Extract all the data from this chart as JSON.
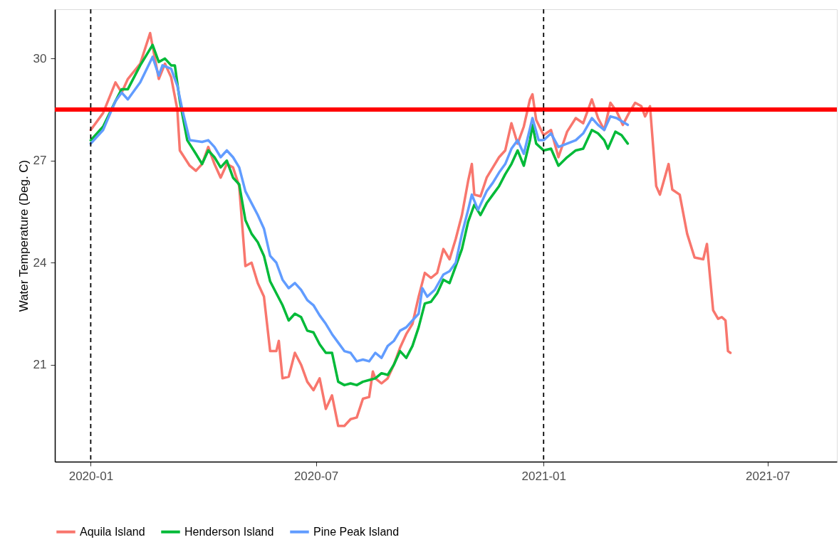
{
  "chart_data": {
    "type": "line",
    "ylabel": "Water Temperature (Deg. C)",
    "xlim": [
      "2019-12-03",
      "2021-08-26"
    ],
    "xticks": [
      "2020-01",
      "2020-07",
      "2021-01",
      "2021-07"
    ],
    "ylim": [
      18.15,
      31.45
    ],
    "yticks": [
      21,
      24,
      27,
      30
    ],
    "grid": false,
    "legend": "bottom",
    "marker": "none",
    "line_style": "solid",
    "ref_lines": [
      {
        "axis": "y",
        "value": 28.5,
        "color": "#ff0000",
        "line_style": "solid"
      },
      {
        "axis": "x",
        "value": "2020-01-01",
        "color": "#000000",
        "line_style": "dashed"
      },
      {
        "axis": "x",
        "value": "2021-01-01",
        "color": "#000000",
        "line_style": "dashed"
      }
    ],
    "series": [
      {
        "name": "Aquila Island",
        "color": "#f8766d",
        "x": [
          "2020-01-01",
          "2020-01-11",
          "2020-01-21",
          "2020-01-26",
          "2020-01-31",
          "2020-02-10",
          "2020-02-18",
          "2020-02-25",
          "2020-03-01",
          "2020-03-06",
          "2020-03-11",
          "2020-03-13",
          "2020-03-21",
          "2020-03-26",
          "2020-03-31",
          "2020-04-05",
          "2020-04-10",
          "2020-04-15",
          "2020-04-20",
          "2020-04-25",
          "2020-04-30",
          "2020-05-05",
          "2020-05-10",
          "2020-05-15",
          "2020-05-20",
          "2020-05-25",
          "2020-05-30",
          "2020-06-01",
          "2020-06-04",
          "2020-06-09",
          "2020-06-14",
          "2020-06-19",
          "2020-06-24",
          "2020-06-29",
          "2020-07-04",
          "2020-07-09",
          "2020-07-14",
          "2020-07-19",
          "2020-07-24",
          "2020-07-29",
          "2020-08-03",
          "2020-08-08",
          "2020-08-13",
          "2020-08-16",
          "2020-08-18",
          "2020-08-23",
          "2020-08-28",
          "2020-09-02",
          "2020-09-07",
          "2020-09-12",
          "2020-09-17",
          "2020-09-22",
          "2020-09-27",
          "2020-10-02",
          "2020-10-07",
          "2020-10-12",
          "2020-10-17",
          "2020-10-22",
          "2020-10-27",
          "2020-11-01",
          "2020-11-04",
          "2020-11-06",
          "2020-11-11",
          "2020-11-16",
          "2020-11-21",
          "2020-11-26",
          "2020-12-01",
          "2020-12-06",
          "2020-12-11",
          "2020-12-16",
          "2020-12-21",
          "2020-12-23",
          "2020-12-26",
          "2021-01-01",
          "2021-01-07",
          "2021-01-13",
          "2021-01-20",
          "2021-01-27",
          "2021-02-02",
          "2021-02-09",
          "2021-02-14",
          "2021-02-19",
          "2021-02-24",
          "2021-03-01",
          "2021-03-06",
          "2021-03-11",
          "2021-03-16",
          "2021-03-21",
          "2021-03-24",
          "2021-03-28",
          "2021-04-02",
          "2021-04-05",
          "2021-04-12",
          "2021-04-15",
          "2021-04-21",
          "2021-04-27",
          "2021-05-03",
          "2021-05-10",
          "2021-05-13",
          "2021-05-18",
          "2021-05-22",
          "2021-05-25",
          "2021-05-28",
          "2021-05-30",
          "2021-06-01"
        ],
        "values": [
          27.9,
          28.4,
          29.3,
          29.0,
          29.4,
          29.85,
          30.75,
          29.4,
          29.85,
          29.45,
          28.5,
          27.3,
          26.85,
          26.7,
          26.9,
          27.4,
          26.9,
          26.5,
          26.9,
          26.8,
          26.25,
          23.9,
          24.0,
          23.4,
          23.0,
          21.4,
          21.4,
          21.7,
          20.6,
          20.65,
          21.35,
          21.0,
          20.5,
          20.25,
          20.6,
          19.7,
          20.1,
          19.2,
          19.2,
          19.4,
          19.45,
          20.0,
          20.05,
          20.8,
          20.6,
          20.45,
          20.6,
          21.0,
          21.5,
          21.9,
          22.2,
          23.0,
          23.7,
          23.55,
          23.7,
          24.4,
          24.1,
          24.7,
          25.4,
          26.4,
          26.9,
          26.0,
          25.95,
          26.5,
          26.8,
          27.1,
          27.3,
          28.1,
          27.5,
          28.0,
          28.8,
          28.95,
          28.2,
          27.75,
          27.9,
          27.1,
          27.85,
          28.25,
          28.1,
          28.8,
          28.25,
          27.9,
          28.7,
          28.45,
          28.05,
          28.4,
          28.7,
          28.6,
          28.3,
          28.6,
          26.25,
          26.0,
          26.9,
          26.15,
          26.0,
          24.85,
          24.15,
          24.1,
          24.55,
          22.6,
          22.35,
          22.4,
          22.3,
          21.4,
          21.35
        ]
      },
      {
        "name": "Henderson Island",
        "color": "#00ba38",
        "x": [
          "2020-01-01",
          "2020-01-11",
          "2020-01-21",
          "2020-01-26",
          "2020-01-31",
          "2020-02-10",
          "2020-02-20",
          "2020-02-25",
          "2020-03-01",
          "2020-03-06",
          "2020-03-09",
          "2020-03-13",
          "2020-03-19",
          "2020-03-26",
          "2020-03-31",
          "2020-04-05",
          "2020-04-10",
          "2020-04-15",
          "2020-04-20",
          "2020-04-25",
          "2020-04-30",
          "2020-05-05",
          "2020-05-10",
          "2020-05-15",
          "2020-05-20",
          "2020-05-25",
          "2020-05-30",
          "2020-06-04",
          "2020-06-09",
          "2020-06-14",
          "2020-06-19",
          "2020-06-24",
          "2020-06-29",
          "2020-07-04",
          "2020-07-09",
          "2020-07-14",
          "2020-07-19",
          "2020-07-24",
          "2020-07-29",
          "2020-08-03",
          "2020-08-08",
          "2020-08-13",
          "2020-08-18",
          "2020-08-23",
          "2020-08-28",
          "2020-09-02",
          "2020-09-07",
          "2020-09-12",
          "2020-09-17",
          "2020-09-22",
          "2020-09-27",
          "2020-10-02",
          "2020-10-07",
          "2020-10-12",
          "2020-10-17",
          "2020-10-22",
          "2020-10-27",
          "2020-11-01",
          "2020-11-06",
          "2020-11-11",
          "2020-11-16",
          "2020-11-21",
          "2020-11-26",
          "2020-12-01",
          "2020-12-06",
          "2020-12-11",
          "2020-12-16",
          "2020-12-21",
          "2020-12-23",
          "2020-12-26",
          "2021-01-01",
          "2021-01-07",
          "2021-01-13",
          "2021-01-20",
          "2021-01-27",
          "2021-02-02",
          "2021-02-09",
          "2021-02-14",
          "2021-02-19",
          "2021-02-22",
          "2021-02-28",
          "2021-03-05",
          "2021-03-10"
        ],
        "values": [
          27.6,
          28.0,
          28.75,
          29.1,
          29.1,
          29.8,
          30.4,
          29.9,
          30.0,
          29.8,
          29.8,
          28.75,
          27.6,
          27.2,
          26.9,
          27.3,
          27.1,
          26.8,
          27.0,
          26.5,
          26.3,
          25.25,
          24.85,
          24.6,
          24.2,
          23.45,
          23.1,
          22.75,
          22.3,
          22.5,
          22.4,
          22.0,
          21.95,
          21.6,
          21.35,
          21.35,
          20.5,
          20.4,
          20.45,
          20.4,
          20.5,
          20.55,
          20.6,
          20.75,
          20.7,
          21.0,
          21.4,
          21.2,
          21.55,
          22.1,
          22.8,
          22.85,
          23.1,
          23.5,
          23.4,
          23.9,
          24.4,
          25.2,
          25.7,
          25.4,
          25.75,
          26.0,
          26.25,
          26.6,
          26.9,
          27.3,
          26.85,
          27.6,
          28.05,
          27.5,
          27.3,
          27.35,
          26.85,
          27.1,
          27.3,
          27.35,
          27.9,
          27.8,
          27.6,
          27.35,
          27.85,
          27.75,
          27.5
        ]
      },
      {
        "name": "Pine Peak Island",
        "color": "#619cff",
        "x": [
          "2020-01-01",
          "2020-01-11",
          "2020-01-21",
          "2020-01-26",
          "2020-01-31",
          "2020-02-10",
          "2020-02-20",
          "2020-02-25",
          "2020-02-28",
          "2020-03-06",
          "2020-03-11",
          "2020-03-15",
          "2020-03-21",
          "2020-03-31",
          "2020-04-05",
          "2020-04-10",
          "2020-04-15",
          "2020-04-20",
          "2020-04-25",
          "2020-04-30",
          "2020-05-05",
          "2020-05-10",
          "2020-05-15",
          "2020-05-20",
          "2020-05-25",
          "2020-05-30",
          "2020-06-04",
          "2020-06-09",
          "2020-06-14",
          "2020-06-19",
          "2020-06-24",
          "2020-06-29",
          "2020-07-04",
          "2020-07-09",
          "2020-07-14",
          "2020-07-19",
          "2020-07-24",
          "2020-07-29",
          "2020-08-03",
          "2020-08-08",
          "2020-08-13",
          "2020-08-18",
          "2020-08-23",
          "2020-08-28",
          "2020-09-02",
          "2020-09-07",
          "2020-09-12",
          "2020-09-17",
          "2020-09-22",
          "2020-09-25",
          "2020-09-29",
          "2020-10-05",
          "2020-10-12",
          "2020-10-17",
          "2020-10-22",
          "2020-10-27",
          "2020-11-01",
          "2020-11-04",
          "2020-11-09",
          "2020-11-16",
          "2020-11-21",
          "2020-11-26",
          "2020-12-01",
          "2020-12-06",
          "2020-12-11",
          "2020-12-16",
          "2020-12-21",
          "2020-12-23",
          "2020-12-28",
          "2021-01-01",
          "2021-01-07",
          "2021-01-13",
          "2021-01-20",
          "2021-01-27",
          "2021-02-02",
          "2021-02-09",
          "2021-02-14",
          "2021-02-19",
          "2021-02-24",
          "2021-03-01",
          "2021-03-10"
        ],
        "values": [
          27.5,
          27.9,
          28.75,
          29.0,
          28.8,
          29.3,
          30.05,
          29.5,
          29.8,
          29.7,
          29.2,
          28.5,
          27.6,
          27.55,
          27.6,
          27.4,
          27.1,
          27.3,
          27.1,
          26.8,
          26.1,
          25.75,
          25.4,
          25.0,
          24.2,
          24.0,
          23.5,
          23.25,
          23.4,
          23.2,
          22.9,
          22.75,
          22.45,
          22.2,
          21.9,
          21.65,
          21.4,
          21.35,
          21.1,
          21.15,
          21.1,
          21.35,
          21.2,
          21.55,
          21.7,
          22.0,
          22.1,
          22.3,
          22.5,
          23.25,
          23.0,
          23.2,
          23.65,
          23.75,
          24.0,
          24.85,
          25.55,
          26.0,
          25.55,
          26.1,
          26.35,
          26.65,
          26.9,
          27.35,
          27.6,
          27.2,
          27.95,
          28.25,
          27.6,
          27.6,
          27.8,
          27.4,
          27.5,
          27.6,
          27.8,
          28.25,
          28.05,
          27.9,
          28.3,
          28.25,
          28.05
        ]
      }
    ]
  }
}
